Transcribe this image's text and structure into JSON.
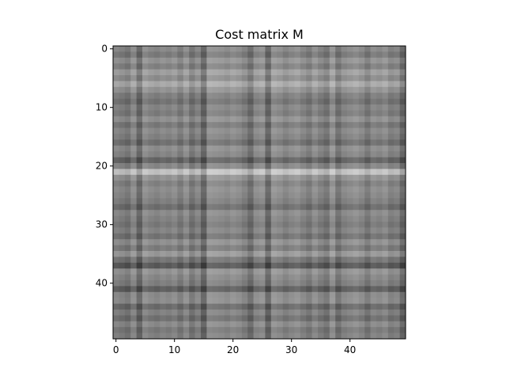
{
  "chart_data": {
    "type": "heatmap",
    "title": "Cost matrix M",
    "xlabel": "",
    "ylabel": "",
    "colormap": "gray",
    "rows": 50,
    "cols": 50,
    "x_ticks": [
      0,
      10,
      20,
      30,
      40
    ],
    "y_ticks": [
      0,
      10,
      20,
      30,
      40
    ],
    "xlim": [
      -0.5,
      49.5
    ],
    "ylim": [
      49.5,
      -0.5
    ],
    "grid": false,
    "row_levels": [
      0.55,
      0.45,
      0.62,
      0.5,
      0.7,
      0.58,
      0.78,
      0.62,
      0.48,
      0.4,
      0.52,
      0.46,
      0.6,
      0.44,
      0.56,
      0.5,
      0.38,
      0.58,
      0.52,
      0.3,
      0.54,
      0.95,
      0.62,
      0.5,
      0.58,
      0.54,
      0.48,
      0.36,
      0.56,
      0.5,
      0.44,
      0.52,
      0.4,
      0.6,
      0.46,
      0.66,
      0.42,
      0.22,
      0.62,
      0.54,
      0.48,
      0.26,
      0.56,
      0.58,
      0.34,
      0.5,
      0.38,
      0.56,
      0.44,
      0.5
    ],
    "col_levels": [
      0.5,
      0.46,
      0.4,
      0.56,
      0.3,
      0.58,
      0.52,
      0.48,
      0.54,
      0.5,
      0.56,
      0.44,
      0.58,
      0.4,
      0.52,
      0.28,
      0.62,
      0.6,
      0.58,
      0.54,
      0.6,
      0.56,
      0.48,
      0.34,
      0.56,
      0.6,
      0.3,
      0.62,
      0.58,
      0.5,
      0.56,
      0.6,
      0.52,
      0.44,
      0.58,
      0.48,
      0.4,
      0.62,
      0.38,
      0.52,
      0.56,
      0.6,
      0.54,
      0.42,
      0.56,
      0.52,
      0.58,
      0.46,
      0.5,
      0.3
    ]
  }
}
